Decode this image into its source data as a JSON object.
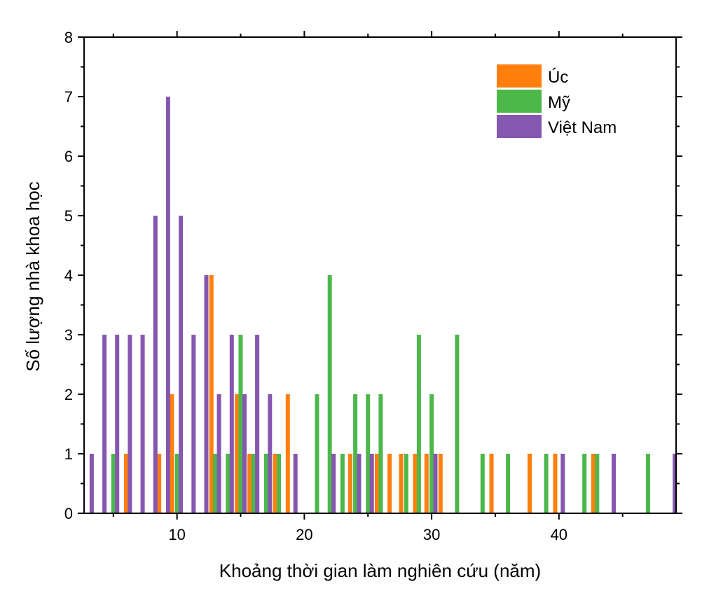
{
  "chart_data": {
    "type": "bar",
    "title": "",
    "xlabel": "Khoảng thời gian làm nghiên cứu (năm)",
    "ylabel": "Số lượng nhà khoa học",
    "xlim": [
      2.7,
      49.2
    ],
    "ylim": [
      0,
      8
    ],
    "x_ticks": [
      10,
      20,
      30,
      40
    ],
    "y_ticks": [
      0,
      1,
      2,
      3,
      4,
      5,
      6,
      7,
      8
    ],
    "legend_position": "top-right",
    "series": [
      {
        "name": "Úc",
        "color": "#ff7f0e",
        "points": [
          {
            "x": 6,
            "y": 1
          },
          {
            "x": 8.6,
            "y": 1
          },
          {
            "x": 9.6,
            "y": 2
          },
          {
            "x": 12.7,
            "y": 4
          },
          {
            "x": 14.7,
            "y": 2
          },
          {
            "x": 15.7,
            "y": 1
          },
          {
            "x": 17.7,
            "y": 1
          },
          {
            "x": 18.7,
            "y": 2
          },
          {
            "x": 23.6,
            "y": 1
          },
          {
            "x": 25.7,
            "y": 1
          },
          {
            "x": 26.7,
            "y": 1
          },
          {
            "x": 27.6,
            "y": 1
          },
          {
            "x": 28.7,
            "y": 1
          },
          {
            "x": 29.6,
            "y": 1
          },
          {
            "x": 30.7,
            "y": 1
          },
          {
            "x": 34.7,
            "y": 1
          },
          {
            "x": 37.7,
            "y": 1
          },
          {
            "x": 39.7,
            "y": 1
          },
          {
            "x": 42.7,
            "y": 1
          }
        ]
      },
      {
        "name": "Mỹ",
        "color": "#4cb84a",
        "points": [
          {
            "x": 5,
            "y": 1
          },
          {
            "x": 10,
            "y": 1
          },
          {
            "x": 13,
            "y": 1
          },
          {
            "x": 14,
            "y": 1
          },
          {
            "x": 15,
            "y": 3
          },
          {
            "x": 16,
            "y": 1
          },
          {
            "x": 17,
            "y": 1
          },
          {
            "x": 18,
            "y": 1
          },
          {
            "x": 21,
            "y": 2
          },
          {
            "x": 22,
            "y": 4
          },
          {
            "x": 23,
            "y": 1
          },
          {
            "x": 24,
            "y": 2
          },
          {
            "x": 25,
            "y": 2
          },
          {
            "x": 26,
            "y": 2
          },
          {
            "x": 28,
            "y": 1
          },
          {
            "x": 29,
            "y": 3
          },
          {
            "x": 30,
            "y": 2
          },
          {
            "x": 32,
            "y": 3
          },
          {
            "x": 34,
            "y": 1
          },
          {
            "x": 36,
            "y": 1
          },
          {
            "x": 39,
            "y": 1
          },
          {
            "x": 42,
            "y": 1
          },
          {
            "x": 43,
            "y": 1
          },
          {
            "x": 47,
            "y": 1
          }
        ]
      },
      {
        "name": "Việt Nam",
        "color": "#8557b0",
        "points": [
          {
            "x": 3.3,
            "y": 1
          },
          {
            "x": 4.3,
            "y": 3
          },
          {
            "x": 5.3,
            "y": 3
          },
          {
            "x": 6.3,
            "y": 3
          },
          {
            "x": 7.3,
            "y": 3
          },
          {
            "x": 8.3,
            "y": 5
          },
          {
            "x": 9.3,
            "y": 7
          },
          {
            "x": 10.3,
            "y": 5
          },
          {
            "x": 11.3,
            "y": 3
          },
          {
            "x": 12.3,
            "y": 4
          },
          {
            "x": 13.3,
            "y": 2
          },
          {
            "x": 14.3,
            "y": 3
          },
          {
            "x": 15.3,
            "y": 2
          },
          {
            "x": 16.3,
            "y": 3
          },
          {
            "x": 17.3,
            "y": 2
          },
          {
            "x": 19.3,
            "y": 1
          },
          {
            "x": 22.3,
            "y": 1
          },
          {
            "x": 24.3,
            "y": 1
          },
          {
            "x": 25.3,
            "y": 1
          },
          {
            "x": 30.3,
            "y": 1
          },
          {
            "x": 40.3,
            "y": 1
          },
          {
            "x": 44.3,
            "y": 1
          },
          {
            "x": 49.1,
            "y": 1
          }
        ]
      }
    ]
  }
}
